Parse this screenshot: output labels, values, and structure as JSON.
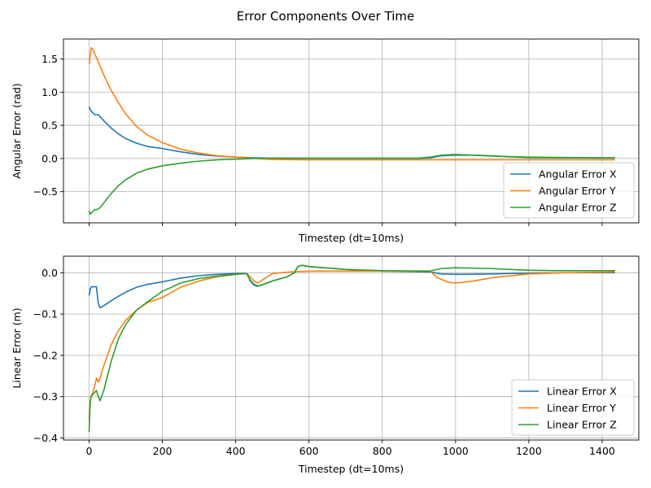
{
  "suptitle": "Error Components Over Time",
  "colors": {
    "x": "#1f77b4",
    "y": "#ff7f0e",
    "z": "#2ca02c",
    "grid": "#b0b0b0",
    "frame": "#000000"
  },
  "chart_data": [
    {
      "type": "line",
      "title": "",
      "xlabel": "Timestep (dt=10ms)",
      "ylabel": "Angular Error (rad)",
      "xlim": [
        -70,
        1500
      ],
      "ylim": [
        -0.97,
        1.8
      ],
      "xticks": [
        0,
        200,
        400,
        600,
        800,
        1000,
        1200,
        1400
      ],
      "xtick_labels_visible": false,
      "yticks": [
        -0.5,
        0.0,
        0.5,
        1.0,
        1.5
      ],
      "ytick_labels": [
        "−0.5",
        "0.0",
        "0.5",
        "1.0",
        "1.5"
      ],
      "grid": true,
      "legend": "lower right",
      "series": [
        {
          "name": "Angular Error X",
          "color": "#1f77b4",
          "x": [
            0,
            3,
            6,
            10,
            15,
            20,
            25,
            30,
            40,
            60,
            80,
            100,
            130,
            160,
            200,
            250,
            300,
            350,
            400,
            450,
            500,
            600,
            700,
            800,
            900,
            930,
            960,
            1000,
            1050,
            1100,
            1150,
            1200,
            1300,
            1435
          ],
          "y": [
            0.78,
            0.74,
            0.71,
            0.69,
            0.66,
            0.66,
            0.66,
            0.63,
            0.57,
            0.46,
            0.37,
            0.3,
            0.23,
            0.18,
            0.15,
            0.1,
            0.06,
            0.035,
            0.02,
            0.01,
            0.005,
            0.0,
            0.0,
            0.0,
            0.0,
            0.01,
            0.04,
            0.05,
            0.05,
            0.04,
            0.025,
            0.015,
            0.01,
            0.005
          ]
        },
        {
          "name": "Angular Error Y",
          "color": "#ff7f0e",
          "x": [
            0,
            3,
            6,
            10,
            20,
            40,
            60,
            80,
            100,
            130,
            160,
            200,
            250,
            300,
            350,
            400,
            450,
            500,
            600,
            800,
            1000,
            1200,
            1435
          ],
          "y": [
            1.42,
            1.55,
            1.67,
            1.64,
            1.52,
            1.26,
            1.03,
            0.84,
            0.67,
            0.48,
            0.35,
            0.24,
            0.14,
            0.08,
            0.04,
            0.02,
            0.0,
            -0.015,
            -0.02,
            -0.02,
            -0.02,
            -0.02,
            -0.02
          ]
        },
        {
          "name": "Angular Error Z",
          "color": "#2ca02c",
          "x": [
            0,
            3,
            6,
            10,
            15,
            20,
            25,
            30,
            40,
            60,
            80,
            100,
            130,
            160,
            200,
            250,
            300,
            350,
            400,
            450,
            500,
            600,
            700,
            800,
            900,
            930,
            960,
            1000,
            1050,
            1100,
            1200,
            1300,
            1435
          ],
          "y": [
            -0.79,
            -0.84,
            -0.82,
            -0.8,
            -0.77,
            -0.77,
            -0.76,
            -0.74,
            -0.67,
            -0.53,
            -0.41,
            -0.32,
            -0.22,
            -0.16,
            -0.11,
            -0.07,
            -0.04,
            -0.02,
            -0.01,
            0.0,
            0.005,
            0.005,
            0.005,
            0.005,
            0.005,
            0.02,
            0.05,
            0.06,
            0.05,
            0.035,
            0.02,
            0.015,
            0.01
          ]
        }
      ]
    },
    {
      "type": "line",
      "title": "",
      "xlabel": "Timestep (dt=10ms)",
      "ylabel": "Linear Error (m)",
      "xlim": [
        -70,
        1500
      ],
      "ylim": [
        -0.405,
        0.04
      ],
      "xticks": [
        0,
        200,
        400,
        600,
        800,
        1000,
        1200,
        1400
      ],
      "xtick_labels": [
        "0",
        "200",
        "400",
        "600",
        "800",
        "1000",
        "1200",
        "1400"
      ],
      "yticks": [
        -0.4,
        -0.3,
        -0.2,
        -0.1,
        0.0
      ],
      "ytick_labels": [
        "−0.4",
        "−0.3",
        "−0.2",
        "−0.1",
        "0.0"
      ],
      "grid": true,
      "legend": "lower right",
      "series": [
        {
          "name": "Linear Error X",
          "color": "#1f77b4",
          "x": [
            0,
            3,
            6,
            10,
            20,
            25,
            30,
            40,
            60,
            80,
            100,
            130,
            160,
            200,
            250,
            300,
            350,
            400,
            430,
            440,
            450,
            460,
            470,
            500,
            540,
            560,
            570,
            580,
            600,
            700,
            800,
            930,
            960,
            1000,
            1100,
            1200,
            1300,
            1435
          ],
          "y": [
            -0.055,
            -0.04,
            -0.034,
            -0.034,
            -0.034,
            -0.075,
            -0.085,
            -0.08,
            -0.068,
            -0.057,
            -0.047,
            -0.035,
            -0.028,
            -0.022,
            -0.013,
            -0.007,
            -0.004,
            -0.002,
            -0.002,
            -0.02,
            -0.03,
            -0.033,
            -0.03,
            -0.02,
            -0.01,
            0.0,
            0.015,
            0.018,
            0.015,
            0.008,
            0.004,
            0.002,
            -0.003,
            -0.004,
            -0.003,
            -0.001,
            0.0,
            0.0
          ]
        },
        {
          "name": "Linear Error Y",
          "color": "#ff7f0e",
          "x": [
            0,
            2,
            5,
            10,
            15,
            20,
            25,
            30,
            40,
            60,
            80,
            100,
            130,
            160,
            200,
            250,
            300,
            350,
            400,
            430,
            440,
            450,
            460,
            500,
            550,
            600,
            700,
            800,
            930,
            950,
            980,
            1000,
            1050,
            1100,
            1200,
            1300,
            1435
          ],
          "y": [
            -0.355,
            -0.315,
            -0.3,
            -0.29,
            -0.275,
            -0.255,
            -0.265,
            -0.255,
            -0.225,
            -0.175,
            -0.14,
            -0.115,
            -0.09,
            -0.072,
            -0.06,
            -0.035,
            -0.02,
            -0.01,
            -0.004,
            -0.002,
            -0.01,
            -0.02,
            -0.025,
            -0.002,
            0.002,
            0.004,
            0.004,
            0.004,
            0.004,
            -0.012,
            -0.023,
            -0.025,
            -0.02,
            -0.012,
            -0.003,
            0.0,
            0.002
          ]
        },
        {
          "name": "Linear Error Z",
          "color": "#2ca02c",
          "x": [
            0,
            2,
            5,
            10,
            15,
            20,
            25,
            30,
            40,
            60,
            80,
            100,
            130,
            160,
            200,
            250,
            300,
            350,
            400,
            430,
            440,
            450,
            460,
            470,
            500,
            540,
            560,
            570,
            580,
            600,
            700,
            800,
            930,
            960,
            1000,
            1100,
            1200,
            1300,
            1435
          ],
          "y": [
            -0.385,
            -0.33,
            -0.3,
            -0.295,
            -0.29,
            -0.285,
            -0.3,
            -0.31,
            -0.285,
            -0.215,
            -0.16,
            -0.125,
            -0.09,
            -0.07,
            -0.045,
            -0.025,
            -0.014,
            -0.008,
            -0.004,
            -0.002,
            -0.018,
            -0.028,
            -0.032,
            -0.03,
            -0.02,
            -0.01,
            0.0,
            0.015,
            0.018,
            0.015,
            0.008,
            0.005,
            0.004,
            0.01,
            0.012,
            0.01,
            0.006,
            0.005,
            0.005
          ]
        }
      ]
    }
  ]
}
